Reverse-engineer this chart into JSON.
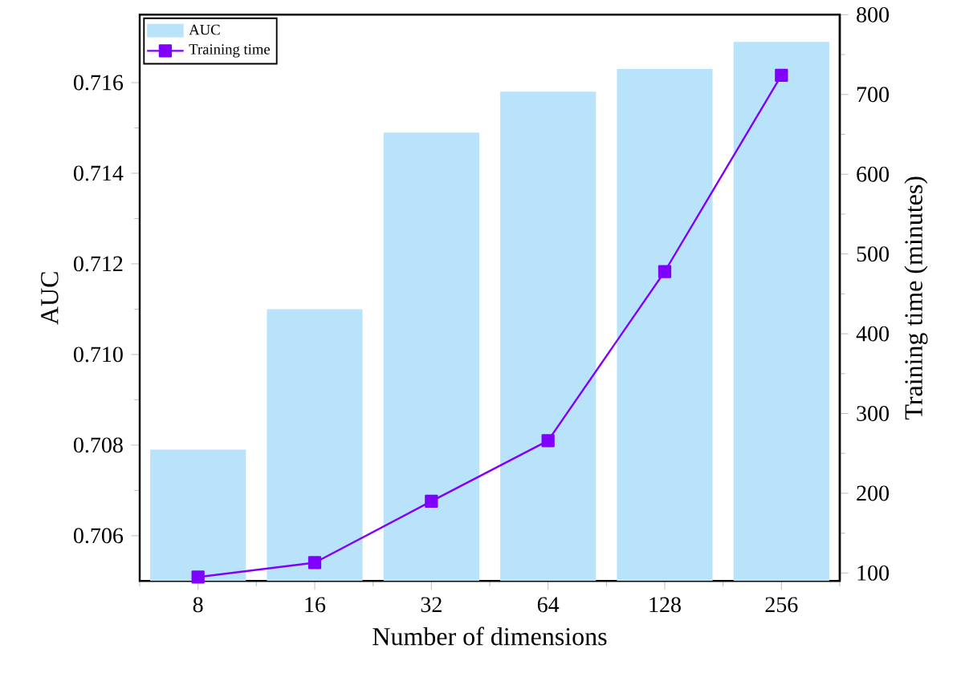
{
  "chart_data": {
    "type": "bar",
    "xlabel": "Number of dimensions",
    "ylabel": "AUC",
    "y2label": "Training time (minutes)",
    "categories": [
      "8",
      "16",
      "32",
      "64",
      "128",
      "256"
    ],
    "series": [
      {
        "name": "AUC",
        "color": "#b9e3fb",
        "values": [
          0.7079,
          0.711,
          0.7149,
          0.7158,
          0.7163,
          0.7169
        ]
      },
      {
        "name": "Training time",
        "type": "line",
        "axis": "y2",
        "color": "#8000ff",
        "marker": "square",
        "values": [
          95,
          113,
          190,
          266,
          478,
          724
        ]
      }
    ],
    "ylim": [
      0.705,
      0.7175
    ],
    "yticks": [
      0.706,
      0.708,
      {
        "value": 0.71,
        "label": "0.710"
      },
      0.712,
      0.714,
      0.716
    ],
    "y2lim": [
      90,
      800
    ],
    "y2ticks": [
      100,
      200,
      300,
      400,
      500,
      600,
      700,
      800
    ],
    "legend": "top left"
  }
}
